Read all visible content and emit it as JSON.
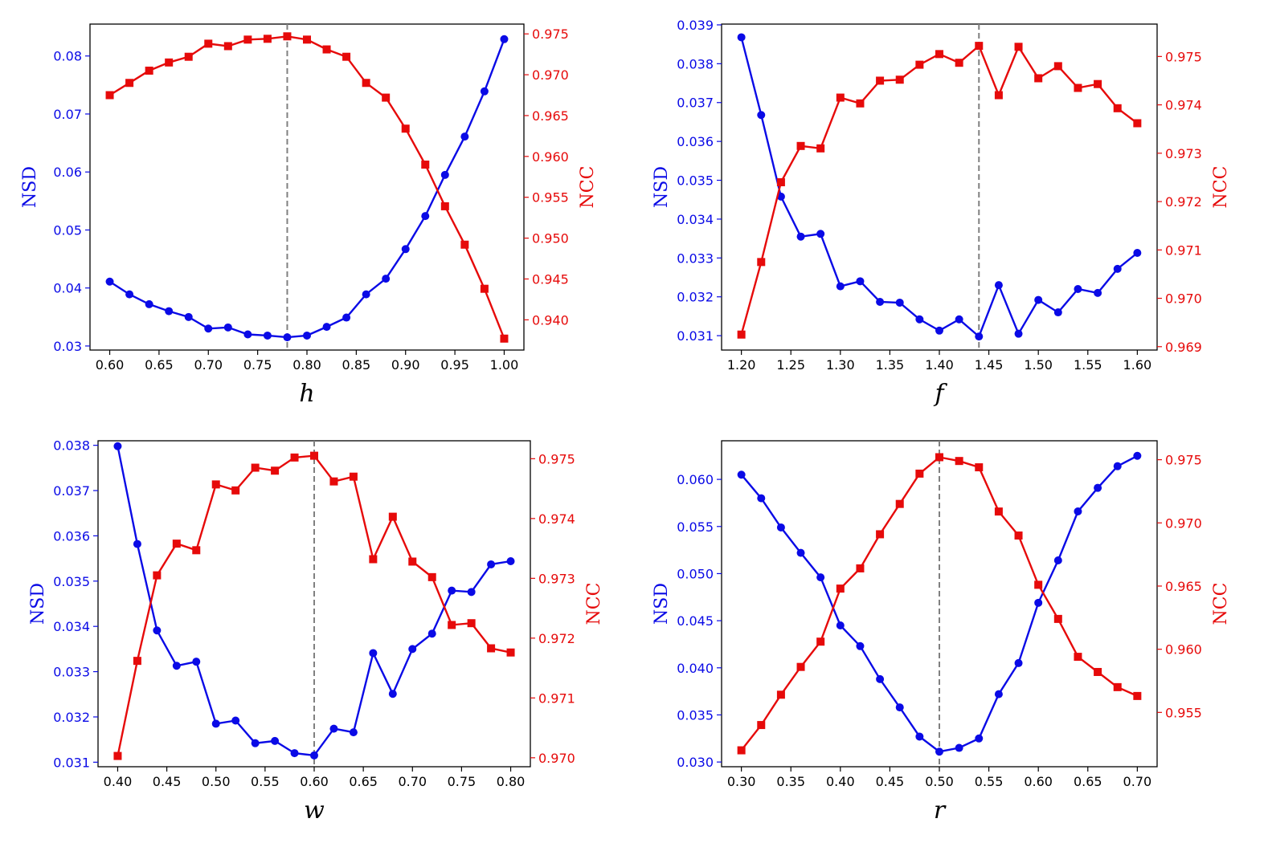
{
  "colors": {
    "nsd": "#0a0ae6",
    "ncc": "#e60a0a",
    "axis": "#000000",
    "vline": "#808080"
  },
  "chart_data": [
    {
      "type": "line",
      "xlabel": "h",
      "ylabel_left": "NSD",
      "ylabel_right": "NCC",
      "vline_x": 0.78,
      "xlim": [
        0.58,
        1.02
      ],
      "xticks": [
        "0.60",
        "0.65",
        "0.70",
        "0.75",
        "0.80",
        "0.85",
        "0.90",
        "0.95",
        "1.00"
      ],
      "ylim_left": [
        0.0293,
        0.0855
      ],
      "yticks_left": [
        "0.03",
        "0.04",
        "0.05",
        "0.06",
        "0.07",
        "0.08"
      ],
      "ylim_right": [
        0.9363,
        0.9762
      ],
      "yticks_right": [
        "0.940",
        "0.945",
        "0.950",
        "0.955",
        "0.960",
        "0.965",
        "0.970",
        "0.975"
      ],
      "x": [
        0.6,
        0.62,
        0.64,
        0.66,
        0.68,
        0.7,
        0.72,
        0.74,
        0.76,
        0.78,
        0.8,
        0.82,
        0.84,
        0.86,
        0.88,
        0.9,
        0.92,
        0.94,
        0.96,
        0.98,
        1.0
      ],
      "series": [
        {
          "name": "NSD",
          "axis": "left",
          "marker": "circle",
          "values": [
            0.0411,
            0.0389,
            0.0372,
            0.036,
            0.035,
            0.033,
            0.0332,
            0.032,
            0.0318,
            0.0315,
            0.0318,
            0.0333,
            0.0349,
            0.0389,
            0.0416,
            0.0467,
            0.0524,
            0.0595,
            0.0661,
            0.0739,
            0.0829
          ]
        },
        {
          "name": "NCC",
          "axis": "right",
          "marker": "square",
          "values": [
            0.9675,
            0.969,
            0.9705,
            0.9715,
            0.9722,
            0.9738,
            0.9735,
            0.9743,
            0.9744,
            0.9747,
            0.9743,
            0.9731,
            0.9722,
            0.969,
            0.9672,
            0.9634,
            0.959,
            0.9539,
            0.9492,
            0.9438,
            0.9377
          ]
        }
      ]
    },
    {
      "type": "line",
      "xlabel": "f",
      "ylabel_left": "NSD",
      "ylabel_right": "NCC",
      "vline_x": 1.44,
      "xlim": [
        1.18,
        1.62
      ],
      "xticks": [
        "1.20",
        "1.25",
        "1.30",
        "1.35",
        "1.40",
        "1.45",
        "1.50",
        "1.55",
        "1.60"
      ],
      "ylim_left": [
        0.03063,
        0.03902
      ],
      "yticks_left": [
        "0.031",
        "0.032",
        "0.033",
        "0.034",
        "0.035",
        "0.036",
        "0.037",
        "0.038",
        "0.039"
      ],
      "ylim_right": [
        0.96893,
        0.97567
      ],
      "yticks_right": [
        "0.969",
        "0.970",
        "0.971",
        "0.972",
        "0.973",
        "0.974",
        "0.975"
      ],
      "x": [
        1.2,
        1.22,
        1.24,
        1.26,
        1.28,
        1.3,
        1.32,
        1.34,
        1.36,
        1.38,
        1.4,
        1.42,
        1.44,
        1.46,
        1.48,
        1.5,
        1.52,
        1.54,
        1.56,
        1.58,
        1.6
      ],
      "series": [
        {
          "name": "NSD",
          "axis": "left",
          "marker": "circle",
          "values": [
            0.03868,
            0.03668,
            0.03458,
            0.03355,
            0.03362,
            0.03227,
            0.0324,
            0.03187,
            0.03185,
            0.03142,
            0.03113,
            0.03142,
            0.03098,
            0.0323,
            0.03105,
            0.03192,
            0.0316,
            0.0322,
            0.0321,
            0.03272,
            0.03313
          ]
        },
        {
          "name": "NCC",
          "axis": "right",
          "marker": "square",
          "values": [
            0.96925,
            0.97075,
            0.9724,
            0.97315,
            0.9731,
            0.97415,
            0.97403,
            0.9745,
            0.97452,
            0.97483,
            0.97505,
            0.97487,
            0.97522,
            0.9742,
            0.9752,
            0.97455,
            0.9748,
            0.97435,
            0.97443,
            0.97393,
            0.97362
          ]
        }
      ]
    },
    {
      "type": "line",
      "xlabel": "w",
      "ylabel_left": "NSD",
      "ylabel_right": "NCC",
      "vline_x": 0.6,
      "xlim": [
        0.38,
        0.82
      ],
      "xticks": [
        "0.40",
        "0.45",
        "0.50",
        "0.55",
        "0.60",
        "0.65",
        "0.70",
        "0.75",
        "0.80"
      ],
      "ylim_left": [
        0.0309,
        0.0381
      ],
      "yticks_left": [
        "0.031",
        "0.032",
        "0.033",
        "0.034",
        "0.035",
        "0.036",
        "0.037",
        "0.038"
      ],
      "ylim_right": [
        0.96985,
        0.9753
      ],
      "yticks_right": [
        "0.970",
        "0.971",
        "0.972",
        "0.973",
        "0.974",
        "0.975"
      ],
      "x": [
        0.4,
        0.42,
        0.44,
        0.46,
        0.48,
        0.5,
        0.52,
        0.54,
        0.56,
        0.58,
        0.6,
        0.62,
        0.64,
        0.66,
        0.68,
        0.7,
        0.72,
        0.74,
        0.76,
        0.78,
        0.8
      ],
      "series": [
        {
          "name": "NSD",
          "axis": "left",
          "marker": "circle",
          "values": [
            0.03798,
            0.03582,
            0.03391,
            0.03313,
            0.03322,
            0.03185,
            0.03192,
            0.03142,
            0.03147,
            0.0312,
            0.03115,
            0.03174,
            0.03166,
            0.03341,
            0.03251,
            0.0335,
            0.03384,
            0.03479,
            0.03476,
            0.03537,
            0.03544
          ]
        },
        {
          "name": "NCC",
          "axis": "right",
          "marker": "square",
          "values": [
            0.97003,
            0.97162,
            0.97305,
            0.97358,
            0.97347,
            0.97457,
            0.97447,
            0.97485,
            0.9748,
            0.97502,
            0.97505,
            0.97462,
            0.9747,
            0.97332,
            0.97403,
            0.97328,
            0.97302,
            0.97222,
            0.97225,
            0.97183,
            0.97176
          ]
        }
      ]
    },
    {
      "type": "line",
      "xlabel": "r",
      "ylabel_left": "NSD",
      "ylabel_right": "NCC",
      "vline_x": 0.5,
      "xlim": [
        0.28,
        0.72
      ],
      "xticks": [
        "0.30",
        "0.35",
        "0.40",
        "0.45",
        "0.50",
        "0.55",
        "0.60",
        "0.65",
        "0.70"
      ],
      "ylim_left": [
        0.0295,
        0.0641
      ],
      "yticks_left": [
        "0.030",
        "0.035",
        "0.040",
        "0.045",
        "0.050",
        "0.055",
        "0.060"
      ],
      "ylim_right": [
        0.9507,
        0.9765
      ],
      "yticks_right": [
        "0.955",
        "0.960",
        "0.965",
        "0.970",
        "0.975"
      ],
      "x": [
        0.3,
        0.32,
        0.34,
        0.36,
        0.38,
        0.4,
        0.42,
        0.44,
        0.46,
        0.48,
        0.5,
        0.52,
        0.54,
        0.56,
        0.58,
        0.6,
        0.62,
        0.64,
        0.66,
        0.68,
        0.7
      ],
      "series": [
        {
          "name": "NSD",
          "axis": "left",
          "marker": "circle",
          "values": [
            0.0605,
            0.058,
            0.0549,
            0.0522,
            0.0496,
            0.0445,
            0.0423,
            0.0388,
            0.0358,
            0.0327,
            0.0311,
            0.0315,
            0.0325,
            0.0372,
            0.0405,
            0.0469,
            0.0514,
            0.0566,
            0.0591,
            0.0614,
            0.0625
          ]
        },
        {
          "name": "NCC",
          "axis": "right",
          "marker": "square",
          "values": [
            0.952,
            0.954,
            0.9564,
            0.9586,
            0.9606,
            0.9648,
            0.9664,
            0.9691,
            0.9715,
            0.9739,
            0.9752,
            0.9749,
            0.9744,
            0.9709,
            0.969,
            0.9651,
            0.9624,
            0.9594,
            0.9582,
            0.957,
            0.9563
          ]
        }
      ]
    }
  ]
}
